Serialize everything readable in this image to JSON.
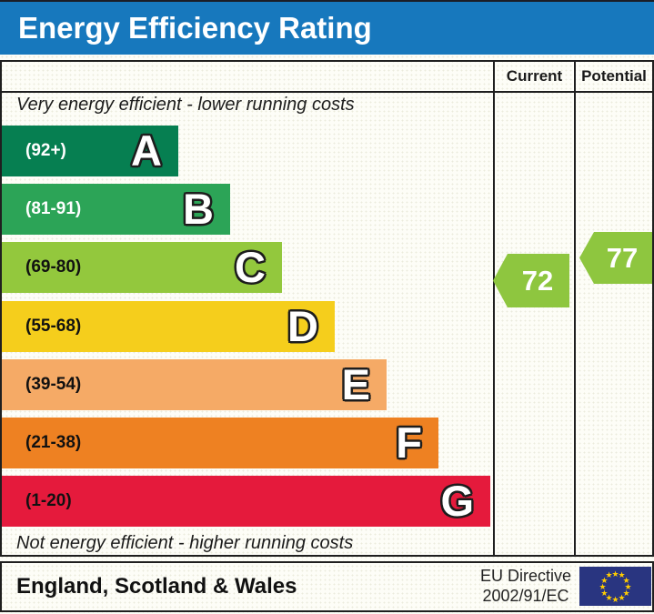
{
  "title": "Energy Efficiency Rating",
  "columns": {
    "current": "Current",
    "potential": "Potential"
  },
  "notes": {
    "top": "Very energy efficient - lower running costs",
    "bottom": "Not energy efficient - higher running costs"
  },
  "bands": [
    {
      "letter": "A",
      "range": "(92+)",
      "color": "#067f51",
      "label_color": "#ffffff"
    },
    {
      "letter": "B",
      "range": "(81-91)",
      "color": "#2ca457",
      "label_color": "#ffffff"
    },
    {
      "letter": "C",
      "range": "(69-80)",
      "color": "#93c83d",
      "label_color": "#111111"
    },
    {
      "letter": "D",
      "range": "(55-68)",
      "color": "#f5ce1c",
      "label_color": "#111111"
    },
    {
      "letter": "E",
      "range": "(39-54)",
      "color": "#f5aa66",
      "label_color": "#111111"
    },
    {
      "letter": "F",
      "range": "(21-38)",
      "color": "#ee8122",
      "label_color": "#111111"
    },
    {
      "letter": "G",
      "range": "(1-20)",
      "color": "#e51a3c",
      "label_color": "#111111"
    }
  ],
  "ratings": {
    "current": {
      "label": "Current",
      "value": "72",
      "band": "C",
      "color": "#8ec63f"
    },
    "potential": {
      "label": "Potential",
      "value": "77",
      "band": "C",
      "color": "#8ec63f"
    }
  },
  "footer": {
    "region": "England, Scotland & Wales",
    "directive_line1": "EU Directive",
    "directive_line2": "2002/91/EC"
  },
  "eu_flag": {
    "background": "#293580",
    "star_color": "#ffcc00",
    "star_count": 12
  },
  "chart_data": {
    "type": "bar",
    "title": "Energy Efficiency Rating",
    "categories": [
      "A",
      "B",
      "C",
      "D",
      "E",
      "F",
      "G"
    ],
    "band_ranges": [
      "92+",
      "81-91",
      "69-80",
      "55-68",
      "39-54",
      "21-38",
      "1-20"
    ],
    "band_colors": [
      "#067f51",
      "#2ca457",
      "#93c83d",
      "#f5ce1c",
      "#f5aa66",
      "#ee8122",
      "#e51a3c"
    ],
    "bar_lengths_relative": [
      1,
      2,
      3,
      4,
      5,
      6,
      7
    ],
    "series": [
      {
        "name": "Current",
        "value": 72,
        "band": "C"
      },
      {
        "name": "Potential",
        "value": 77,
        "band": "C"
      }
    ],
    "annotations": [
      "Very energy efficient - lower running costs",
      "Not energy efficient - higher running costs"
    ],
    "footer": "England, Scotland & Wales",
    "directive": "EU Directive 2002/91/EC",
    "scale": [
      1,
      100
    ],
    "legend_position": "top-right-columns"
  }
}
